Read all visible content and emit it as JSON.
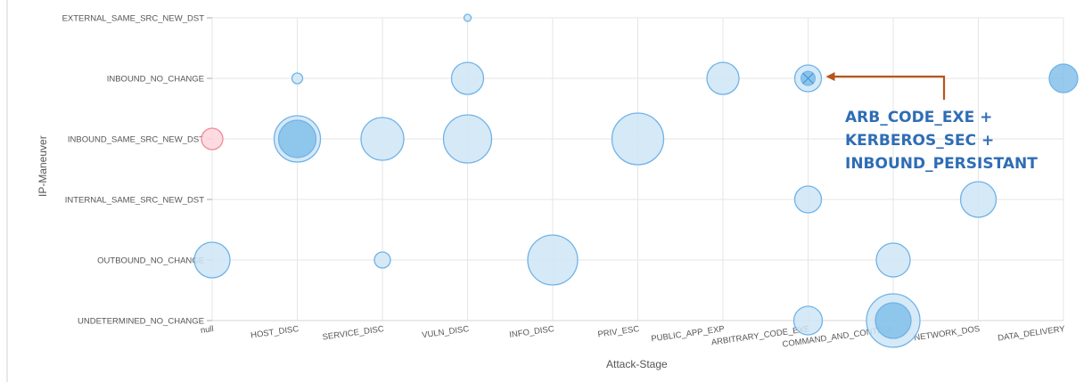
{
  "chart_data": {
    "type": "scatter",
    "subtype": "bubble",
    "xlabel": "Attack-Stage",
    "ylabel": "IP-Maneuver",
    "x_categories": [
      "null",
      "HOST_DISC",
      "SERVICE_DISC",
      "VULN_DISC",
      "INFO_DISC",
      "PRIV_ESC",
      "PUBLIC_APP_EXP",
      "ARBITRARY_CODE_EXE",
      "COMMAND_AND_CONTROL",
      "NETWORK_DOS",
      "DATA_DELIVERY"
    ],
    "y_categories": [
      "EXTERNAL_SAME_SRC_NEW_DST",
      "INBOUND_NO_CHANGE",
      "INBOUND_SAME_SRC_NEW_DST",
      "INTERNAL_SAME_SRC_NEW_DST",
      "OUTBOUND_NO_CHANGE",
      "UNDETERMINED_NO_CHANGE"
    ],
    "grid": true,
    "colors": {
      "bubble_fill": "#cfe5f6",
      "bubble_stroke": "#6fb3e8",
      "dark_fill": "#7dbde9",
      "null_fill": "#fbd5dc",
      "null_stroke": "#f08a9c",
      "arrow": "#b5561a",
      "annotation": "#2f6db5"
    },
    "points": [
      {
        "x": "VULN_DISC",
        "y": "EXTERNAL_SAME_SRC_NEW_DST",
        "size": 4,
        "style": "light"
      },
      {
        "x": "HOST_DISC",
        "y": "INBOUND_NO_CHANGE",
        "size": 6,
        "style": "light"
      },
      {
        "x": "VULN_DISC",
        "y": "INBOUND_NO_CHANGE",
        "size": 18,
        "style": "light"
      },
      {
        "x": "PUBLIC_APP_EXP",
        "y": "INBOUND_NO_CHANGE",
        "size": 18,
        "style": "light"
      },
      {
        "x": "ARBITRARY_CODE_EXE",
        "y": "INBOUND_NO_CHANGE",
        "size": 15,
        "style": "light"
      },
      {
        "x": "DATA_DELIVERY",
        "y": "INBOUND_NO_CHANGE",
        "size": 16,
        "style": "dark"
      },
      {
        "x": "null",
        "y": "INBOUND_SAME_SRC_NEW_DST",
        "size": 12,
        "style": "red"
      },
      {
        "x": "HOST_DISC",
        "y": "INBOUND_SAME_SRC_NEW_DST",
        "size": 26,
        "style": "light"
      },
      {
        "x": "HOST_DISC",
        "y": "INBOUND_SAME_SRC_NEW_DST",
        "size": 21,
        "style": "dark"
      },
      {
        "x": "SERVICE_DISC",
        "y": "INBOUND_SAME_SRC_NEW_DST",
        "size": 24,
        "style": "light"
      },
      {
        "x": "VULN_DISC",
        "y": "INBOUND_SAME_SRC_NEW_DST",
        "size": 27,
        "style": "light"
      },
      {
        "x": "PRIV_ESC",
        "y": "INBOUND_SAME_SRC_NEW_DST",
        "size": 29,
        "style": "light"
      },
      {
        "x": "ARBITRARY_CODE_EXE",
        "y": "INTERNAL_SAME_SRC_NEW_DST",
        "size": 15,
        "style": "light"
      },
      {
        "x": "NETWORK_DOS",
        "y": "INTERNAL_SAME_SRC_NEW_DST",
        "size": 20,
        "style": "light"
      },
      {
        "x": "null",
        "y": "OUTBOUND_NO_CHANGE",
        "size": 20,
        "style": "light"
      },
      {
        "x": "SERVICE_DISC",
        "y": "OUTBOUND_NO_CHANGE",
        "size": 9,
        "style": "light"
      },
      {
        "x": "INFO_DISC",
        "y": "OUTBOUND_NO_CHANGE",
        "size": 28,
        "style": "light"
      },
      {
        "x": "COMMAND_AND_CONTROL",
        "y": "OUTBOUND_NO_CHANGE",
        "size": 19,
        "style": "light"
      },
      {
        "x": "ARBITRARY_CODE_EXE",
        "y": "UNDETERMINED_NO_CHANGE",
        "size": 16,
        "style": "light"
      },
      {
        "x": "COMMAND_AND_CONTROL",
        "y": "UNDETERMINED_NO_CHANGE",
        "size": 30,
        "style": "light"
      },
      {
        "x": "COMMAND_AND_CONTROL",
        "y": "UNDETERMINED_NO_CHANGE",
        "size": 20,
        "style": "dark"
      }
    ],
    "annotation": {
      "lines": [
        "ARB_CODE_EXE +",
        "KERBEROS_SEC +",
        "INBOUND_PERSISTANT"
      ],
      "target": {
        "x": "ARBITRARY_CODE_EXE",
        "y": "INBOUND_NO_CHANGE"
      }
    }
  }
}
